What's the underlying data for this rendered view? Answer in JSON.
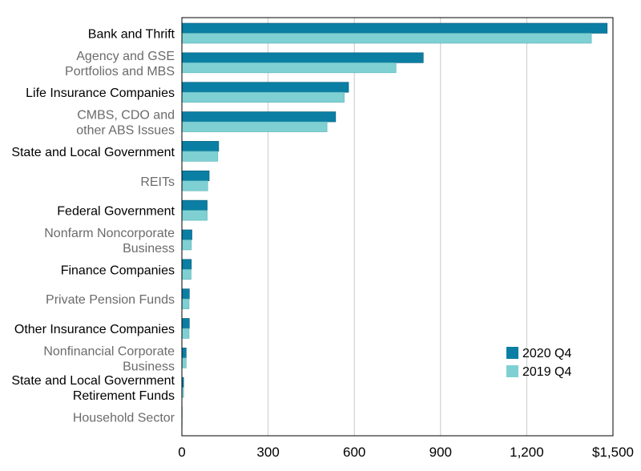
{
  "colors": {
    "series_2020": "#0a7fa3",
    "series_2019": "#7fd0d3",
    "label_dark": "#000000",
    "label_gray": "#6b6b6b",
    "grid": "#c8c8c8"
  },
  "chart_data": {
    "type": "bar",
    "orientation": "horizontal",
    "categories": [
      {
        "lines": [
          "Bank and Thrift"
        ],
        "style": "dark"
      },
      {
        "lines": [
          "Agency and GSE",
          "Portfolios and MBS"
        ],
        "style": "gray"
      },
      {
        "lines": [
          "Life Insurance Companies"
        ],
        "style": "dark"
      },
      {
        "lines": [
          "CMBS, CDO and",
          "other ABS Issues"
        ],
        "style": "gray"
      },
      {
        "lines": [
          "State and Local Government"
        ],
        "style": "dark"
      },
      {
        "lines": [
          "REITs"
        ],
        "style": "gray"
      },
      {
        "lines": [
          "Federal Government"
        ],
        "style": "dark"
      },
      {
        "lines": [
          "Nonfarm Noncorporate",
          "Business"
        ],
        "style": "gray"
      },
      {
        "lines": [
          "Finance Companies"
        ],
        "style": "dark"
      },
      {
        "lines": [
          "Private Pension Funds"
        ],
        "style": "gray"
      },
      {
        "lines": [
          "Other Insurance Companies"
        ],
        "style": "dark"
      },
      {
        "lines": [
          "Nonfinancial Corporate",
          "Business"
        ],
        "style": "gray"
      },
      {
        "lines": [
          "State and Local Government",
          "Retirement Funds"
        ],
        "style": "dark"
      },
      {
        "lines": [
          "Household Sector"
        ],
        "style": "gray"
      }
    ],
    "series": [
      {
        "name": "2020 Q4",
        "color": "#0a7fa3",
        "values": [
          1480,
          840,
          580,
          535,
          128,
          95,
          88,
          35,
          33,
          26,
          26,
          15,
          6,
          1
        ]
      },
      {
        "name": "2019 Q4",
        "color": "#7fd0d3",
        "values": [
          1425,
          745,
          565,
          505,
          125,
          90,
          88,
          33,
          32,
          25,
          25,
          15,
          6,
          1
        ]
      }
    ],
    "xlim": [
      0,
      1500
    ],
    "xticks": [
      0,
      300,
      600,
      900,
      1200,
      1500
    ],
    "xtick_labels": [
      "0",
      "300",
      "600",
      "900",
      "1,200",
      "$1,500"
    ],
    "grid": true,
    "legend_position": "lower-right"
  }
}
